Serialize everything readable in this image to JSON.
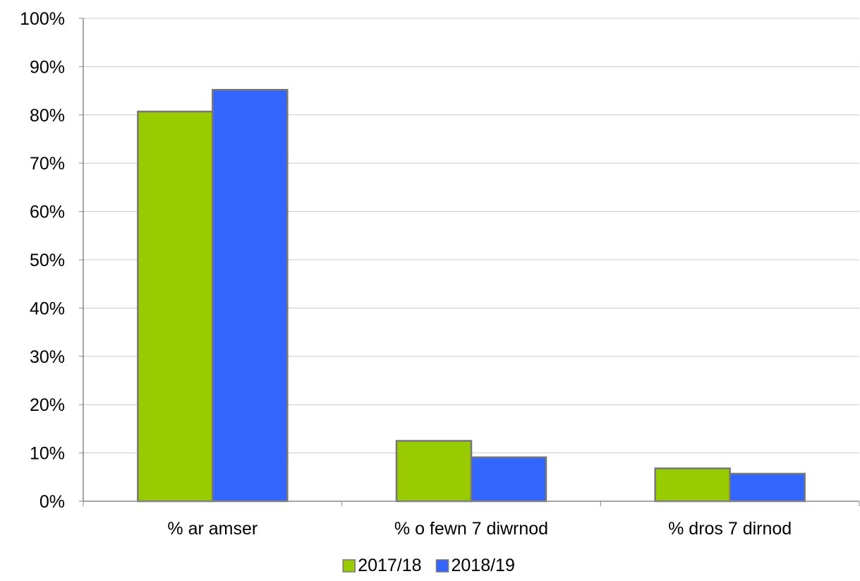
{
  "chart_data": {
    "type": "bar",
    "categories": [
      "% ar amser",
      "% o fewn 7 diwrnod",
      "% dros 7 dirnod"
    ],
    "series": [
      {
        "name": "2017/18",
        "values": [
          80.7,
          12.5,
          6.8
        ],
        "color": "#99cc00"
      },
      {
        "name": "2018/19",
        "values": [
          85.2,
          9.1,
          5.7
        ],
        "color": "#3366ff"
      }
    ],
    "ylim": [
      0,
      100
    ],
    "yticks": [
      "0%",
      "10%",
      "20%",
      "30%",
      "40%",
      "50%",
      "60%",
      "70%",
      "80%",
      "90%",
      "100%"
    ],
    "grid": true,
    "legend_position": "bottom",
    "bar_border_color": "#777777",
    "grid_color": "#c8c8c8"
  }
}
